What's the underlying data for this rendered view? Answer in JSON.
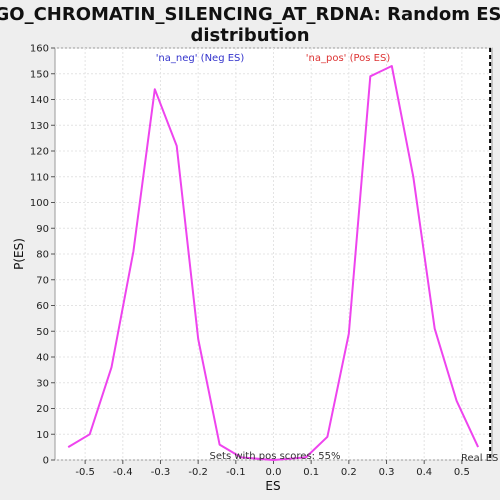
{
  "chart_data": {
    "type": "line",
    "title_line1": "GO_CHROMATIN_SILENCING_AT_RDNA: Random ES",
    "title_line2": "distribution",
    "xlabel": "ES",
    "ylabel": "P(ES)",
    "xlim": [
      -0.58,
      0.58
    ],
    "ylim": [
      0,
      160
    ],
    "x_ticks": [
      -0.5,
      -0.4,
      -0.3,
      -0.2,
      -0.1,
      0.0,
      0.1,
      0.2,
      0.3,
      0.4,
      0.5
    ],
    "x_tick_labels": [
      "-0.5",
      "-0.4",
      "-0.3",
      "-0.2",
      "-0.1",
      "0.0",
      "0.1",
      "0.2",
      "0.3",
      "0.4",
      "0.5"
    ],
    "y_ticks": [
      0,
      10,
      20,
      30,
      40,
      50,
      60,
      70,
      80,
      90,
      100,
      110,
      120,
      130,
      140,
      150,
      160
    ],
    "y_tick_labels": [
      "0",
      "10",
      "20",
      "30",
      "40",
      "50",
      "60",
      "70",
      "80",
      "90",
      "100",
      "110",
      "120",
      "130",
      "140",
      "150",
      "160"
    ],
    "grid": true,
    "series": [
      {
        "color": "#ee44ee",
        "x": [
          -0.545,
          -0.488,
          -0.43,
          -0.372,
          -0.315,
          -0.257,
          -0.2,
          -0.143,
          -0.086,
          0.0,
          0.086,
          0.143,
          0.2,
          0.257,
          0.314,
          0.371,
          0.428,
          0.486,
          0.543
        ],
        "y": [
          5,
          10,
          36,
          81,
          144,
          122,
          47,
          6,
          1,
          0,
          1,
          9,
          49,
          149,
          153,
          110,
          51,
          23,
          5
        ]
      }
    ],
    "real_es_x": 0.575,
    "real_es_color": "#000000",
    "annotations": {
      "neg_label": "'na_neg' (Neg ES)",
      "neg_color": "#3333cc",
      "pos_label": "'na_pos' (Pos ES)",
      "pos_color": "#dd3333",
      "pos_scores_label": "Sets with pos scores: 55%",
      "real_es_label": "Real ES"
    }
  }
}
